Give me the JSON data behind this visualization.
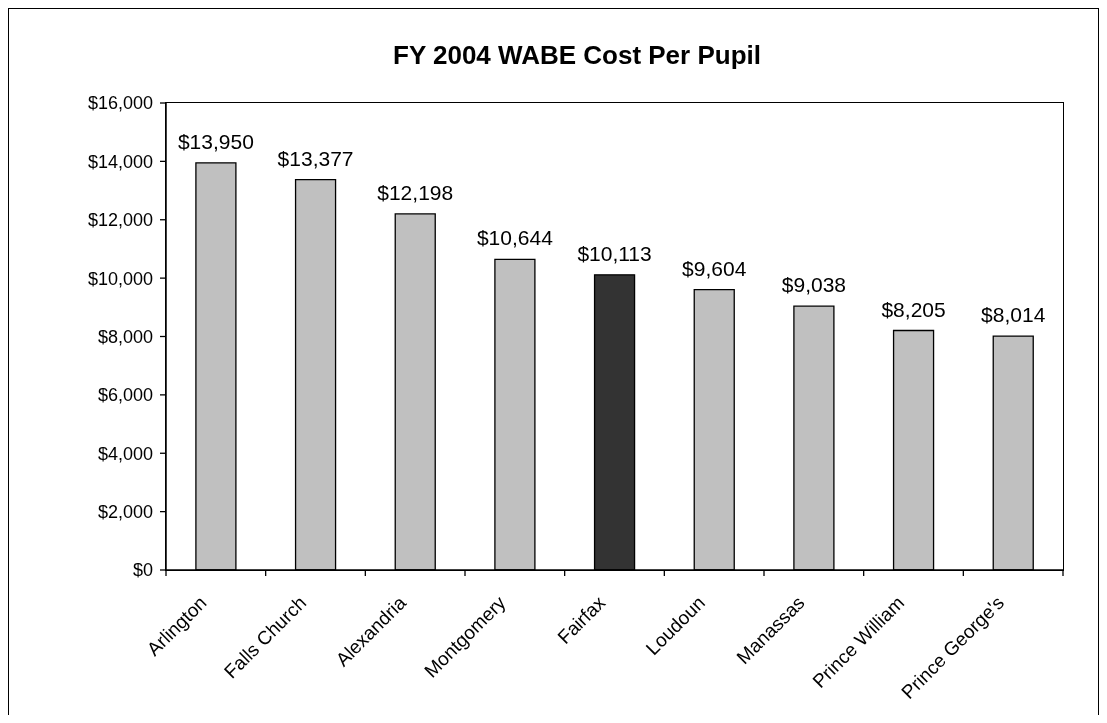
{
  "chart_data": {
    "type": "bar",
    "title": "FY 2004 WABE Cost Per Pupil",
    "categories": [
      "Arlington",
      "Falls Church",
      "Alexandria",
      "Montgomery",
      "Fairfax",
      "Loudoun",
      "Manassas",
      "Prince William",
      "Prince George's"
    ],
    "values": [
      13950,
      13377,
      12198,
      10644,
      10113,
      9604,
      9038,
      8205,
      8014
    ],
    "colors": [
      "#c0c0c0",
      "#c0c0c0",
      "#c0c0c0",
      "#c0c0c0",
      "#333333",
      "#c0c0c0",
      "#c0c0c0",
      "#c0c0c0",
      "#c0c0c0"
    ],
    "value_labels": [
      "$13,950",
      "$13,377",
      "$12,198",
      "$10,644",
      "$10,113",
      "$9,604",
      "$9,038",
      "$8,205",
      "$8,014"
    ],
    "ylim": [
      0,
      16000
    ],
    "yticks": [
      {
        "value": 0,
        "label": "$0"
      },
      {
        "value": 2000,
        "label": "$2,000"
      },
      {
        "value": 4000,
        "label": "$4,000"
      },
      {
        "value": 6000,
        "label": "$6,000"
      },
      {
        "value": 8000,
        "label": "$8,000"
      },
      {
        "value": 10000,
        "label": "$10,000"
      },
      {
        "value": 12000,
        "label": "$12,000"
      },
      {
        "value": 14000,
        "label": "$14,000"
      },
      {
        "value": 16000,
        "label": "$16,000"
      }
    ]
  }
}
